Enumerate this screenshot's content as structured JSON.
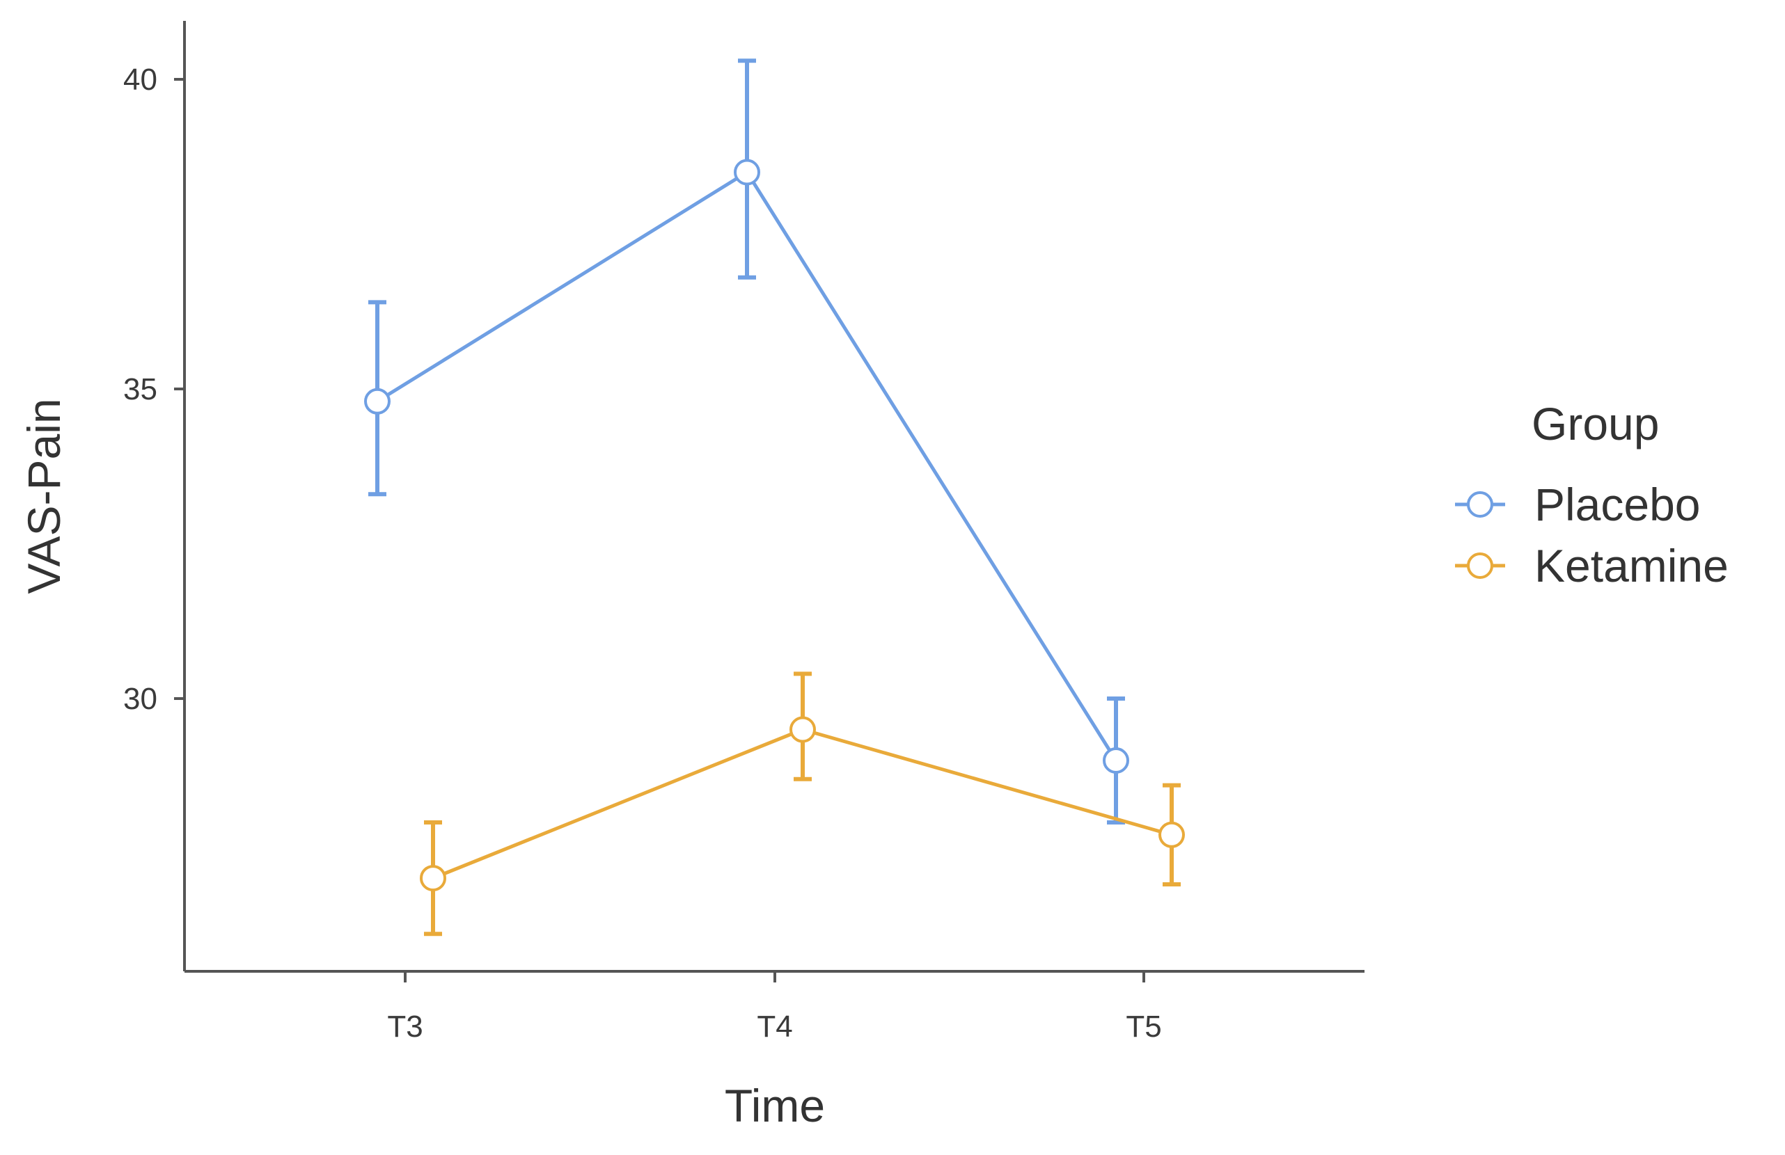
{
  "chart_data": {
    "type": "line",
    "xlabel": "Time",
    "ylabel": "VAS-Pain",
    "categories": [
      "T3",
      "T4",
      "T5"
    ],
    "y_ticks": [
      30,
      35,
      40
    ],
    "ylim": [
      25.6,
      41.0
    ],
    "grid": false,
    "legend": {
      "title": "Group",
      "position": "right"
    },
    "series": [
      {
        "name": "Placebo",
        "color": "#6f9fe3",
        "values": [
          34.8,
          38.5,
          29.0
        ],
        "error_low": [
          33.3,
          36.8,
          28.0
        ],
        "error_high": [
          36.4,
          40.3,
          30.0
        ]
      },
      {
        "name": "Ketamine",
        "color": "#e9aa3a",
        "values": [
          27.1,
          29.5,
          27.8
        ],
        "error_low": [
          26.2,
          28.7,
          27.0
        ],
        "error_high": [
          28.0,
          30.4,
          28.6
        ]
      }
    ]
  }
}
